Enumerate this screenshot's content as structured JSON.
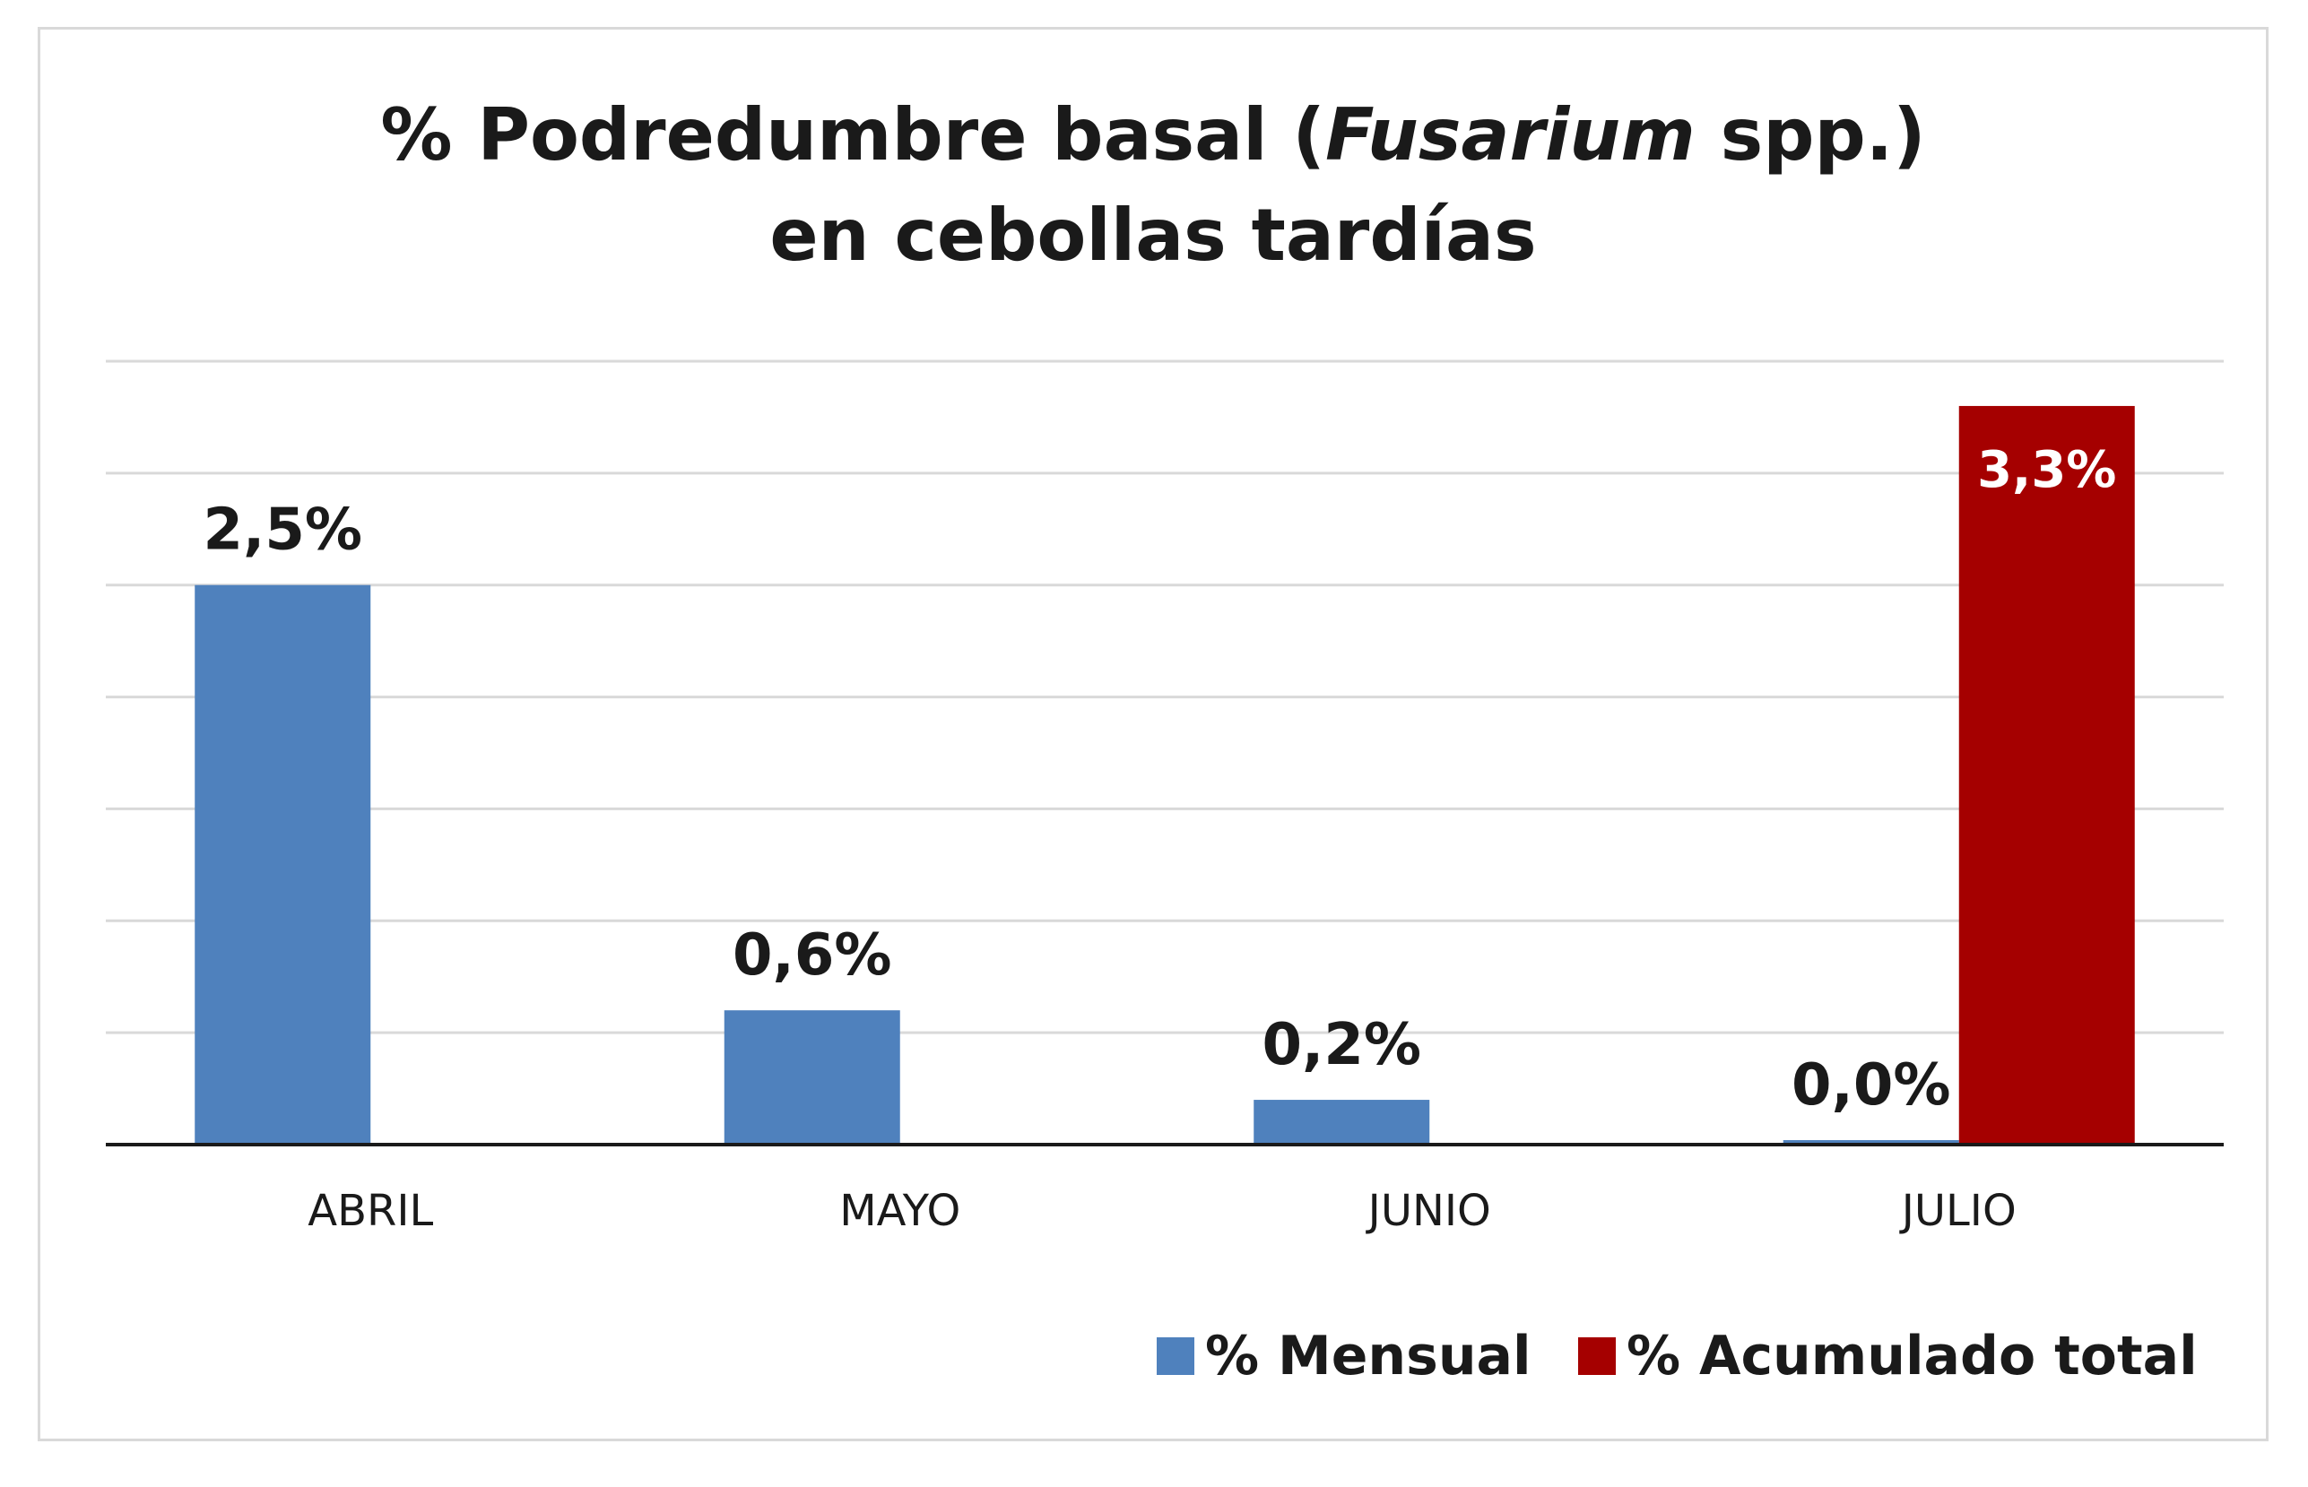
{
  "title": {
    "line1_before": "% Podredumbre basal (",
    "line1_italic": "Fusarium",
    "line1_after": " spp.)",
    "line2": "en cebollas tardías"
  },
  "legend": {
    "mensual": "% Mensual",
    "acumulado": "% Acumulado total"
  },
  "colors": {
    "mensual": "#4f81bd",
    "acumulado": "#a50000",
    "grid": "#d9d9d9",
    "axis": "#1a1a1a"
  },
  "chart_data": {
    "type": "bar",
    "categories": [
      "ABRIL",
      "MAYO",
      "JUNIO",
      "JULIO"
    ],
    "ylim": [
      0,
      3.5
    ],
    "grid": true,
    "legend_position": "bottom-right",
    "series": [
      {
        "name": "% Mensual",
        "values": [
          2.5,
          0.6,
          0.2,
          0.0
        ],
        "labels": [
          "2,5%",
          "0,6%",
          "0,2%",
          "0,0%"
        ]
      },
      {
        "name": "% Acumulado total",
        "values": [
          null,
          null,
          null,
          3.3
        ],
        "labels": [
          null,
          null,
          null,
          "3,3%"
        ]
      }
    ]
  }
}
